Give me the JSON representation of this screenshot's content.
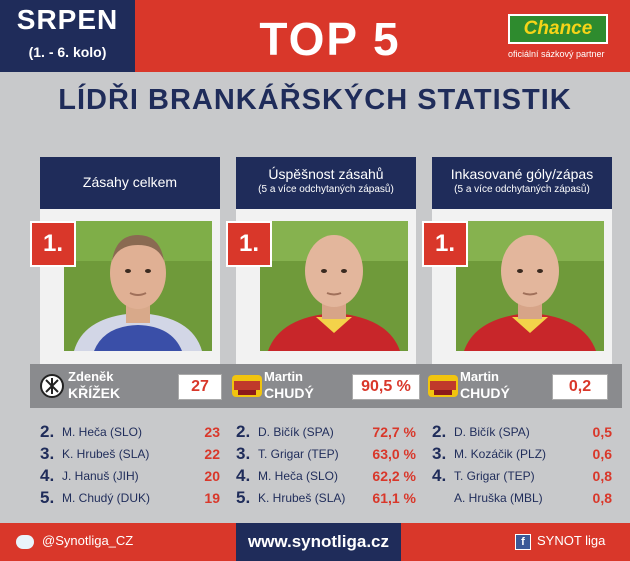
{
  "header": {
    "month": "SRPEN",
    "rounds": "(1. - 6. kolo)",
    "headline": "TOP 5",
    "sponsor": {
      "name": "Chance",
      "tagline": "oficiální sázkový partner"
    }
  },
  "title": "LÍDŘI BRANKÁŘSKÝCH STATISTIK",
  "cards": [
    {
      "heading": "Zásahy celkem",
      "subheading": "",
      "rank": "1.",
      "player_first": "Zdeněk",
      "player_last": "KŘÍŽEK",
      "value": "27",
      "list": [
        {
          "rank": "2.",
          "name": "M. Heča (SLO)",
          "value": "23"
        },
        {
          "rank": "3.",
          "name": "K. Hrubeš (SLA)",
          "value": "22"
        },
        {
          "rank": "4.",
          "name": "J. Hanuš (JIH)",
          "value": "20"
        },
        {
          "rank": "5.",
          "name": "M. Chudý (DUK)",
          "value": "19"
        }
      ]
    },
    {
      "heading": "Úspěšnost zásahů",
      "subheading": "(5 a více odchytaných zápasů)",
      "rank": "1.",
      "player_first": "Martin",
      "player_last": "CHUDÝ",
      "value": "90,5 %",
      "list": [
        {
          "rank": "2.",
          "name": "D. Bičík (SPA)",
          "value": "72,7 %"
        },
        {
          "rank": "3.",
          "name": "T. Grigar (TEP)",
          "value": "63,0 %"
        },
        {
          "rank": "4.",
          "name": "M. Heča (SLO)",
          "value": "62,2 %"
        },
        {
          "rank": "5.",
          "name": "K. Hrubeš (SLA)",
          "value": "61,1 %"
        }
      ]
    },
    {
      "heading": "Inkasované góly/zápas",
      "subheading": "(5 a více odchytaných zápasů)",
      "rank": "1.",
      "player_first": "Martin",
      "player_last": "CHUDÝ",
      "value": "0,2",
      "list": [
        {
          "rank": "2.",
          "name": "D. Bičík (SPA)",
          "value": "0,5"
        },
        {
          "rank": "3.",
          "name": "M. Kozáčik (PLZ)",
          "value": "0,6"
        },
        {
          "rank": "4.",
          "name": "T. Grigar (TEP)",
          "value": "0,8"
        },
        {
          "rank": "",
          "name": "A. Hruška (MBL)",
          "value": "0,8"
        }
      ]
    }
  ],
  "footer": {
    "twitter": "@Synotliga_CZ",
    "website": "www.synotliga.cz",
    "facebook": "SYNOT liga"
  },
  "colors": {
    "red": "#d9372a",
    "navy": "#1f2c5a",
    "gray": "#8a8b8e"
  }
}
